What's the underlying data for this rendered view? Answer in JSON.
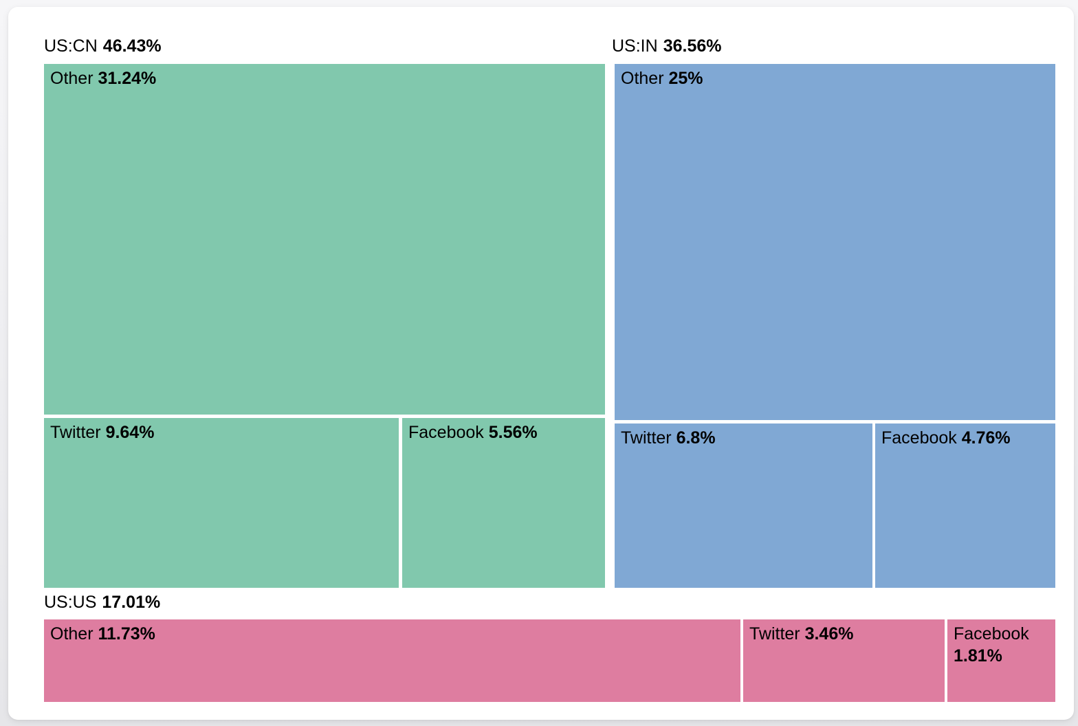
{
  "chart_data": {
    "type": "treemap",
    "title": "",
    "legend": "none",
    "label_format": "name + bold percent",
    "groups": [
      {
        "name": "US:CN",
        "share": "46.43%",
        "value": 46.43,
        "color": "#81C8AD",
        "children": [
          {
            "name": "Other",
            "share": "31.24%",
            "value": 31.24
          },
          {
            "name": "Twitter",
            "share": "9.64%",
            "value": 9.64
          },
          {
            "name": "Facebook",
            "share": "5.56%",
            "value": 5.56
          }
        ]
      },
      {
        "name": "US:IN",
        "share": "36.56%",
        "value": 36.56,
        "color": "#80A8D4",
        "children": [
          {
            "name": "Other",
            "share": "25%",
            "value": 25.0
          },
          {
            "name": "Twitter",
            "share": "6.8%",
            "value": 6.8
          },
          {
            "name": "Facebook",
            "share": "4.76%",
            "value": 4.76
          }
        ]
      },
      {
        "name": "US:US",
        "share": "17.01%",
        "value": 17.01,
        "color": "#DE7DA0",
        "children": [
          {
            "name": "Other",
            "share": "11.73%",
            "value": 11.73
          },
          {
            "name": "Twitter",
            "share": "3.46%",
            "value": 3.46
          },
          {
            "name": "Facebook",
            "share": "1.81%",
            "value": 1.81
          }
        ]
      }
    ],
    "colors": {
      "us_cn": "#81C8AD",
      "us_in": "#80A8D4",
      "us_us": "#DE7DA0",
      "card_background": "#FFFFFF",
      "page_background": "#ECECEF",
      "text": "#000000"
    }
  }
}
